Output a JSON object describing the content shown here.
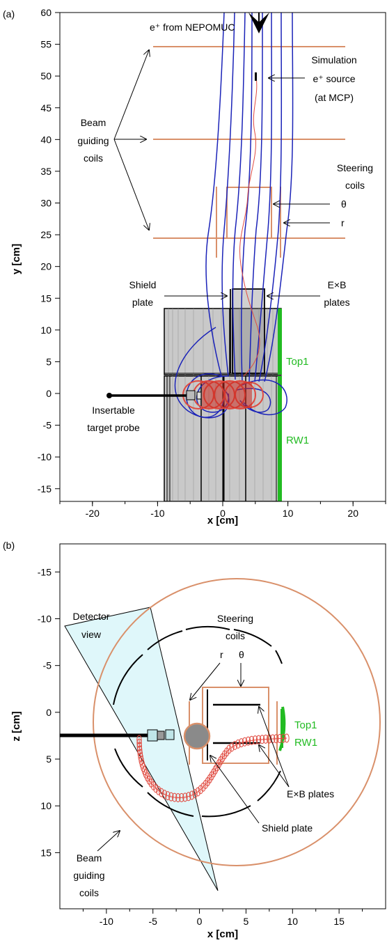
{
  "panel_a": {
    "label": "(a)",
    "xlabel": "x [cm]",
    "ylabel": "y [cm]",
    "x_ticks": [
      "-20",
      "-10",
      "0",
      "10",
      "20"
    ],
    "y_ticks": [
      "60",
      "55",
      "50",
      "45",
      "40",
      "35",
      "30",
      "25",
      "20",
      "15",
      "10",
      "5",
      "0",
      "-5",
      "-10",
      "-15"
    ],
    "annotations": {
      "beam_title": "e⁺ from NEPOMUC",
      "sim_line1": "Simulation",
      "sim_line2": "e⁺ source",
      "sim_line3": "(at MCP)",
      "beam_coils_1": "Beam",
      "beam_coils_2": "guiding",
      "beam_coils_3": "coils",
      "steering_1": "Steering",
      "steering_2": "coils",
      "theta": "θ",
      "r": "r",
      "shield_1": "Shield",
      "shield_2": "plate",
      "exb_1": "E×B",
      "exb_2": "plates",
      "top1": "Top1",
      "rw1": "RW1",
      "probe_1": "Insertable",
      "probe_2": "target probe"
    }
  },
  "panel_b": {
    "label": "(b)",
    "xlabel": "x [cm]",
    "ylabel": "z [cm]",
    "x_ticks": [
      "-10",
      "-5",
      "0",
      "5",
      "10",
      "15"
    ],
    "y_ticks": [
      "-15",
      "-10",
      "-5",
      "0",
      "5",
      "10",
      "15"
    ],
    "annotations": {
      "detector_1": "Detector",
      "detector_2": "view",
      "steering_1": "Steering",
      "steering_2": "coils",
      "r": "r",
      "theta": "θ",
      "top1": "Top1",
      "rw1": "RW1",
      "exb": "E×B plates",
      "shield": "Shield plate",
      "beam_coils_1": "Beam",
      "beam_coils_2": "guiding",
      "beam_coils_3": "coils"
    }
  },
  "colors": {
    "field_lines": "#1a22b8",
    "coils": "#d9906a",
    "trajectory": "#e04a40",
    "detector": "#22bb22",
    "detector_view": "#dff7fa"
  }
}
